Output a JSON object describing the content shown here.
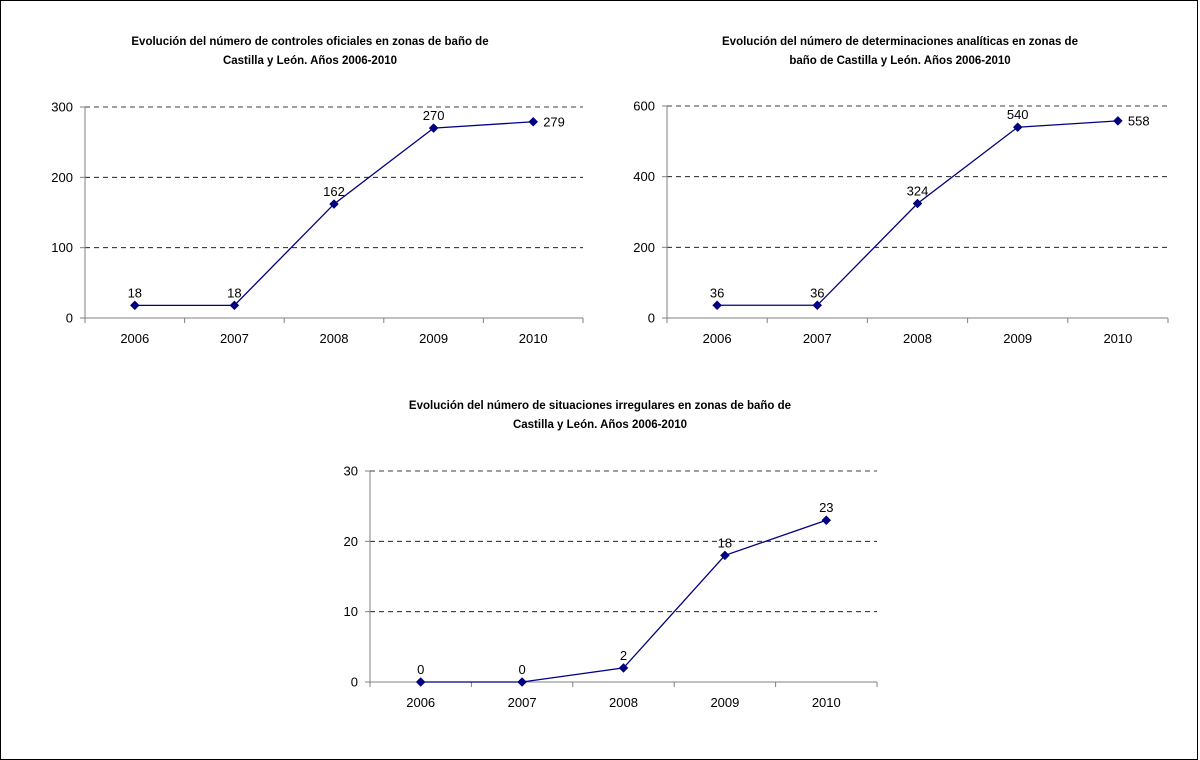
{
  "chart_data": [
    {
      "type": "line",
      "title": "Evolución del número de controles oficiales en zonas de baño de Castilla y León. Años 2006-2010",
      "title_lines": [
        "Evolución del número de controles oficiales en zonas de baño de",
        "Castilla y León. Años 2006-2010"
      ],
      "categories": [
        "2006",
        "2007",
        "2008",
        "2009",
        "2010"
      ],
      "values": [
        18,
        18,
        162,
        270,
        279
      ],
      "data_labels": [
        "18",
        "18",
        "162",
        "270",
        "279"
      ],
      "ylim": [
        0,
        300
      ],
      "yticks": [
        0,
        100,
        200,
        300
      ],
      "gridlines": "dashed",
      "legend": "none"
    },
    {
      "type": "line",
      "title": "Evolución del número de determinaciones analíticas en zonas de baño de Castilla y León. Años 2006-2010",
      "title_lines": [
        "Evolución del número de determinaciones analíticas en zonas de",
        "baño de Castilla y León. Años 2006-2010"
      ],
      "categories": [
        "2006",
        "2007",
        "2008",
        "2009",
        "2010"
      ],
      "values": [
        36,
        36,
        324,
        540,
        558
      ],
      "data_labels": [
        "36",
        "36",
        "324",
        "540",
        "558"
      ],
      "ylim": [
        0,
        600
      ],
      "yticks": [
        0,
        200,
        400,
        600
      ],
      "gridlines": "dashed",
      "legend": "none"
    },
    {
      "type": "line",
      "title": "Evolución del número de situaciones irregulares en zonas de baño de Castilla y León. Años 2006-2010",
      "title_lines": [
        "Evolución del número de situaciones irregulares en zonas de baño de",
        "Castilla y León. Años 2006-2010"
      ],
      "categories": [
        "2006",
        "2007",
        "2008",
        "2009",
        "2010"
      ],
      "values": [
        0,
        0,
        2,
        18,
        23
      ],
      "data_labels": [
        "0",
        "0",
        "2",
        "18",
        "23"
      ],
      "ylim": [
        0,
        30
      ],
      "yticks": [
        0,
        10,
        20,
        30
      ],
      "gridlines": "dashed",
      "legend": "none"
    }
  ],
  "colors": {
    "series": "#000080",
    "axis": "#808080",
    "grid": "#000000"
  }
}
